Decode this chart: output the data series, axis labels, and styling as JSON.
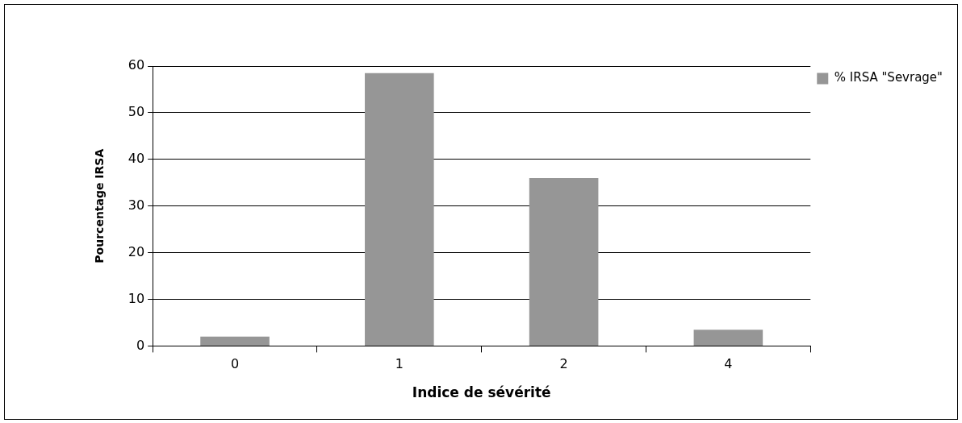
{
  "chart_data": {
    "type": "bar",
    "xlabel": "Indice de sévérité",
    "ylabel": "Pourcentage IRSA",
    "categories": [
      "0",
      "1",
      "2",
      "4"
    ],
    "series": [
      {
        "name": "% IRSA \"Sevrage\"",
        "color": "#969696",
        "values": [
          2,
          58.5,
          36,
          3.5
        ]
      }
    ],
    "ylim": [
      0,
      60
    ],
    "yticks": [
      0,
      10,
      20,
      30,
      40,
      50,
      60
    ],
    "grid": "y",
    "legend": "top right"
  }
}
